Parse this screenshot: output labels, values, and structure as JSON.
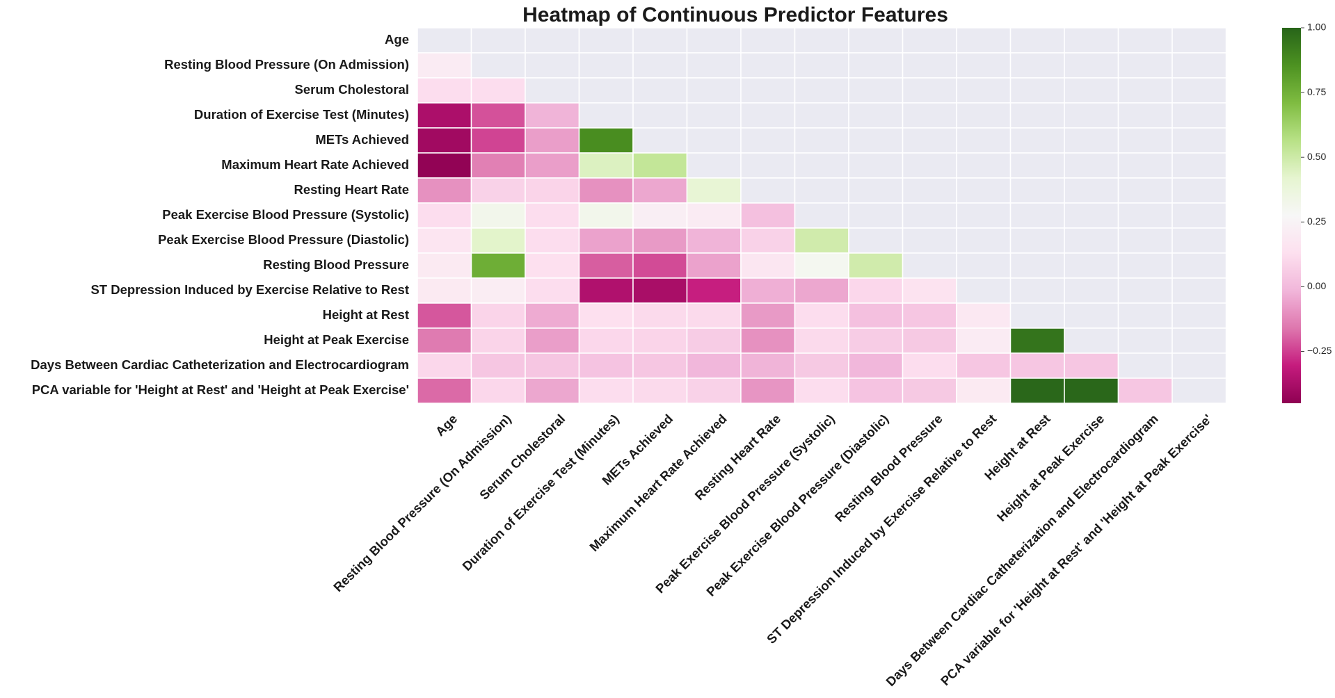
{
  "chart_data": {
    "type": "heatmap",
    "title": "Heatmap of Continuous Predictor Features",
    "labels": [
      "Age",
      "Resting Blood Pressure (On Admission)",
      "Serum Cholestoral",
      "Duration of Exercise Test (Minutes)",
      "METs Achieved",
      "Maximum Heart Rate Achieved",
      "Resting Heart Rate",
      "Peak Exercise Blood Pressure (Systolic)",
      "Peak Exercise Blood Pressure (Diastolic)",
      "Resting Blood Pressure",
      "ST Depression Induced by Exercise Relative to Rest",
      "Height at Rest",
      "Height at Peak Exercise",
      "Days Between Cardiac Catheterization and Electrocardiogram",
      "PCA variable for 'Height at Rest' and 'Height at Peak Exercise'"
    ],
    "matrix_lower_triangle": [
      [],
      [
        0.2
      ],
      [
        0.12,
        0.12
      ],
      [
        -0.37,
        -0.22,
        -0.02
      ],
      [
        -0.4,
        -0.24,
        -0.07,
        0.87
      ],
      [
        -0.44,
        -0.14,
        -0.07,
        0.45,
        0.53
      ],
      [
        -0.1,
        0.08,
        0.09,
        -0.1,
        -0.05,
        0.4
      ],
      [
        0.12,
        0.32,
        0.12,
        0.32,
        0.22,
        0.2,
        0.02
      ],
      [
        0.16,
        0.43,
        0.12,
        -0.06,
        -0.08,
        -0.02,
        0.08,
        0.49
      ],
      [
        0.19,
        0.76,
        0.13,
        -0.2,
        -0.23,
        -0.06,
        0.17,
        0.3,
        0.49
      ],
      [
        0.19,
        0.21,
        0.12,
        -0.36,
        -0.38,
        -0.3,
        -0.03,
        -0.05,
        0.1,
        0.15
      ],
      [
        -0.21,
        0.09,
        -0.04,
        0.13,
        0.11,
        0.11,
        -0.08,
        0.12,
        0.02,
        0.04,
        0.18
      ],
      [
        -0.15,
        0.09,
        -0.07,
        0.1,
        0.09,
        0.06,
        -0.1,
        0.11,
        0.06,
        0.05,
        0.2,
        0.95
      ],
      [
        0.1,
        0.04,
        0.04,
        0.03,
        0.04,
        -0.01,
        -0.02,
        0.05,
        -0.01,
        0.12,
        0.04,
        0.04,
        0.04
      ],
      [
        -0.18,
        0.1,
        -0.05,
        0.12,
        0.11,
        0.08,
        -0.09,
        0.12,
        0.03,
        0.05,
        0.19,
        0.99,
        0.99,
        0.04
      ]
    ],
    "colorbar": {
      "colormap": "PiYG",
      "vmin": -0.45,
      "vmax": 1.0,
      "ticks": [
        1.0,
        0.75,
        0.5,
        0.25,
        0.0,
        -0.25
      ],
      "tick_labels": [
        "1.00",
        "0.75",
        "0.50",
        "0.25",
        "0.00",
        "−0.25"
      ]
    },
    "masked_cell_color": "#eaeaf2",
    "grid_line_color": "#ffffff",
    "legend": "none"
  }
}
